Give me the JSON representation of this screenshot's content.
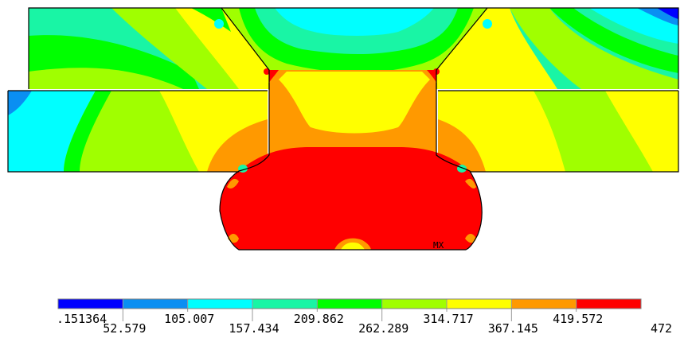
{
  "contour_plot": {
    "max_marker": "MX",
    "colors": {
      "outline": "#000000",
      "background": "#ffffff"
    }
  },
  "legend": {
    "bands": [
      {
        "color": "#0000ff"
      },
      {
        "color": "#0a8ff2"
      },
      {
        "color": "#00ffff"
      },
      {
        "color": "#19f5a5"
      },
      {
        "color": "#00ff00"
      },
      {
        "color": "#a0ff00"
      },
      {
        "color": "#ffff00"
      },
      {
        "color": "#ff9900"
      },
      {
        "color": "#ff0000"
      }
    ],
    "labels": [
      ".151364",
      "52.579",
      "105.007",
      "157.434",
      "209.862",
      "262.289",
      "314.717",
      "367.145",
      "419.572",
      "472"
    ]
  }
}
